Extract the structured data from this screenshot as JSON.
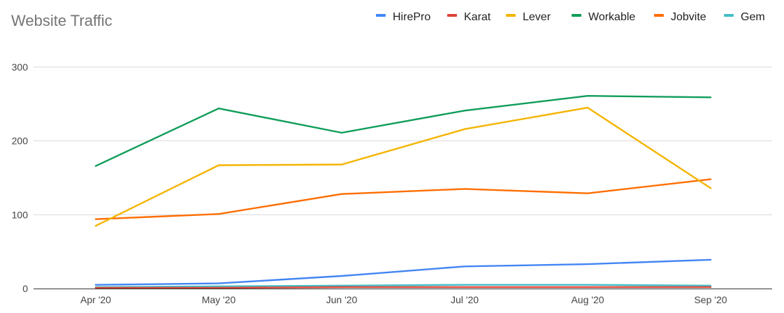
{
  "chart_data": {
    "type": "line",
    "title": "Website Traffic",
    "xlabel": "",
    "ylabel": "",
    "categories": [
      "Apr '20",
      "May '20",
      "Jun '20",
      "Jul '20",
      "Aug '20",
      "Sep '20"
    ],
    "ylim": [
      0,
      300
    ],
    "yticks": [
      0,
      100,
      200,
      300
    ],
    "grid": true,
    "legend_position": "top-right",
    "series": [
      {
        "name": "HirePro",
        "color": "#4285F4",
        "values": [
          5,
          7,
          17,
          30,
          33,
          39
        ]
      },
      {
        "name": "Karat",
        "color": "#DB4437",
        "values": [
          1,
          1,
          2,
          2,
          2,
          2
        ]
      },
      {
        "name": "Lever",
        "color": "#F4B400",
        "values": [
          85,
          167,
          168,
          216,
          245,
          136
        ]
      },
      {
        "name": "Workable",
        "color": "#0F9D58",
        "values": [
          166,
          244,
          211,
          241,
          261,
          259
        ]
      },
      {
        "name": "Jobvite",
        "color": "#FF6D01",
        "values": [
          94,
          101,
          128,
          135,
          129,
          148
        ]
      },
      {
        "name": "Gem",
        "color": "#46BDC6",
        "values": [
          2,
          3,
          4,
          5,
          5,
          4
        ]
      }
    ]
  }
}
